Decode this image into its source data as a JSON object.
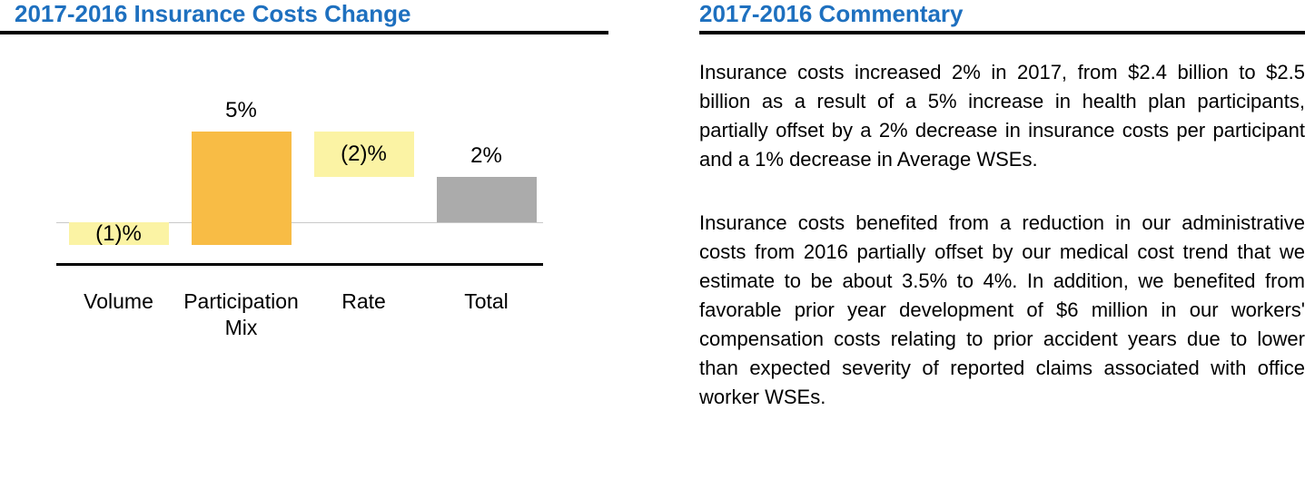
{
  "left": {
    "title": "2017-2016 Insurance Costs Change"
  },
  "right": {
    "title": "2017-2016 Commentary",
    "paragraphs": [
      "Insurance costs increased 2% in 2017, from $2.4 billion to $2.5 billion as a result of a 5% increase in health plan participants, partially offset by a 2% decrease in insurance costs per participant and a 1% decrease in Average WSEs.",
      "Insurance costs benefited from a reduction in our administrative costs from 2016 partially offset by our medical cost trend that we estimate to be about 3.5% to 4%. In addition, we benefited from favorable prior year development of $6 million in our workers' compensation costs relating to prior accident years due to lower than expected severity of reported claims associated with office worker WSEs."
    ]
  },
  "chart_data": {
    "type": "bar",
    "subtype": "waterfall",
    "title": "2017-2016 Insurance Costs Change",
    "categories": [
      "Volume",
      "Participation Mix",
      "Rate",
      "Total"
    ],
    "values": [
      -1,
      5,
      -2,
      2
    ],
    "labels": [
      "(1)%",
      "5%",
      "(2)%",
      "2%"
    ],
    "label_position": [
      "on-bar",
      "above",
      "on-bar",
      "above"
    ],
    "is_total": [
      false,
      false,
      false,
      true
    ],
    "bar_colors": [
      "#FBF3A4",
      "#F8BC45",
      "#FBF3A4",
      "#ABABAB"
    ],
    "xlabel": "",
    "ylabel": "",
    "ylim": [
      -1.5,
      6
    ],
    "baseline": 0,
    "grid": false,
    "legend": "none"
  },
  "colors": {
    "accent_blue": "#1E70BF",
    "bar_orange": "#F8BC45",
    "bar_light_yellow": "#FBF3A4",
    "bar_gray": "#ABABAB",
    "rule_black": "#000000",
    "baseline_gray": "#C9C9C9"
  }
}
